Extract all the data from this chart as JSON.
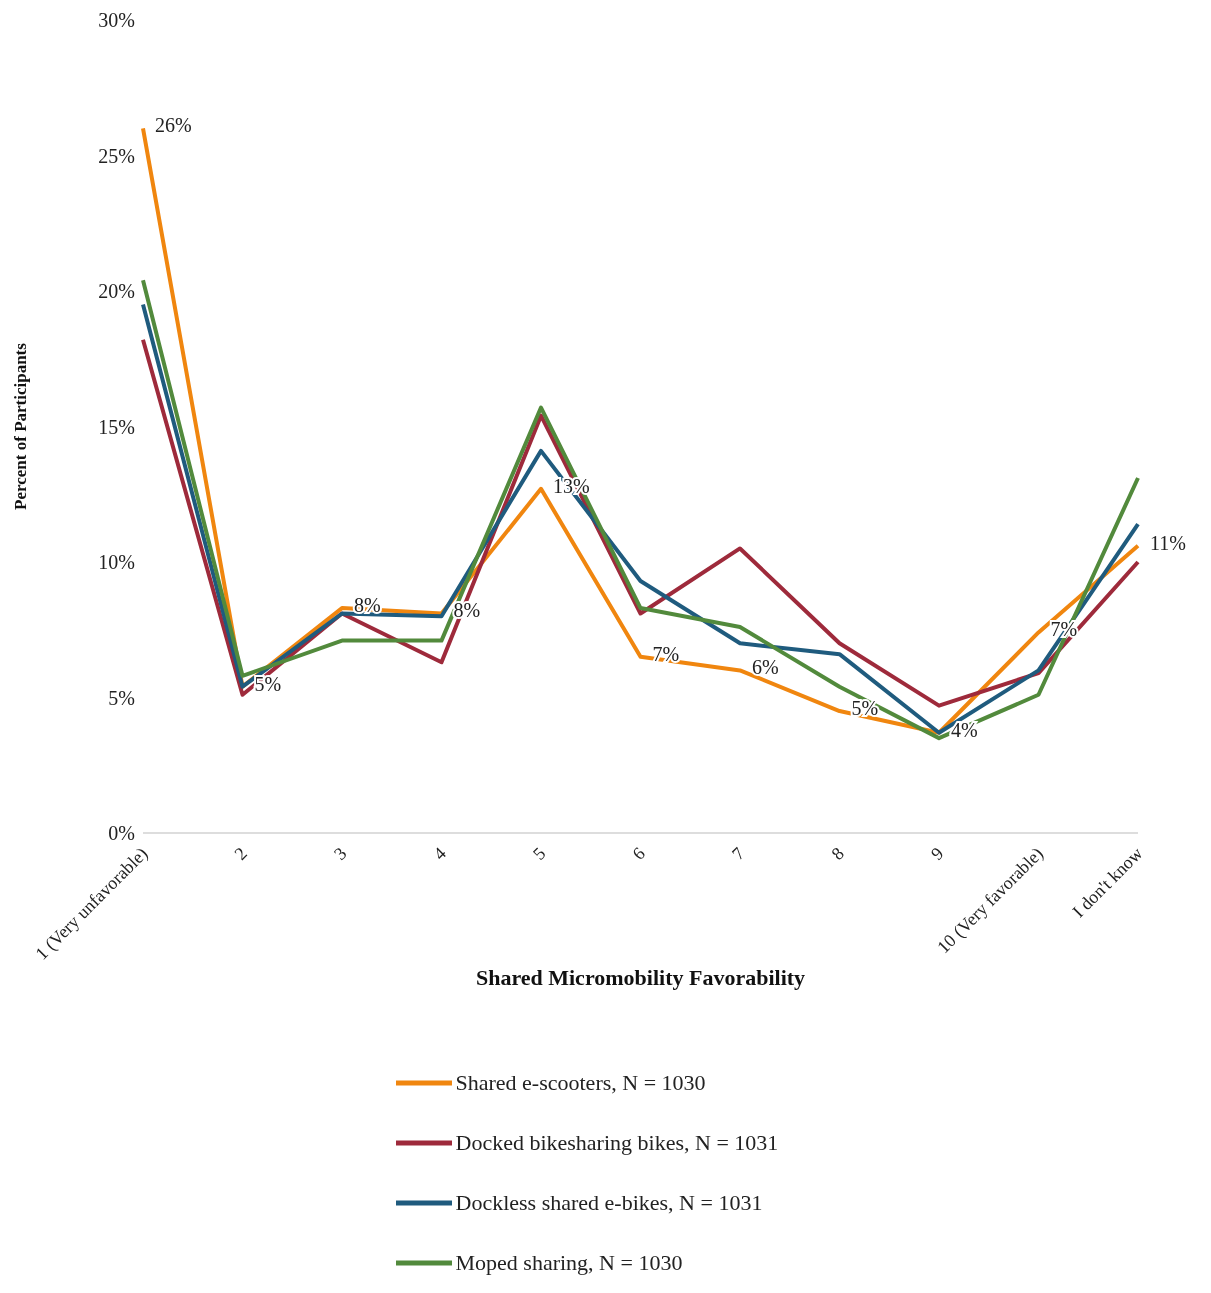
{
  "chart_data": {
    "type": "line",
    "xlabel": "Shared Micromobility Favorability",
    "ylabel": "Percent of Participants",
    "categories": [
      "1 (Very unfavorable)",
      "2",
      "3",
      "4",
      "5",
      "6",
      "7",
      "8",
      "9",
      "10 (Very favorable)",
      "I don't know"
    ],
    "series": [
      {
        "name": "Shared e-scooters, N =  1030",
        "color": "#f0860f",
        "values": [
          26,
          5.4,
          8.3,
          8.1,
          12.7,
          6.5,
          6.0,
          4.5,
          3.7,
          7.4,
          10.6
        ],
        "value_labels": [
          "26%",
          "5%",
          "8%",
          "8%",
          "13%",
          "7%",
          "6%",
          "5%",
          "4%",
          "7%",
          "11%"
        ]
      },
      {
        "name": "Docked bikesharing bikes, N =  1031",
        "color": "#9e2a3b",
        "values": [
          18.2,
          5.1,
          8.1,
          6.3,
          15.4,
          8.1,
          10.5,
          7.0,
          4.7,
          5.9,
          10.0
        ]
      },
      {
        "name": "Dockless shared e-bikes, N =  1031",
        "color": "#1f5b7e",
        "values": [
          19.5,
          5.4,
          8.1,
          8.0,
          14.1,
          9.3,
          7.0,
          6.6,
          3.7,
          6.0,
          11.4
        ]
      },
      {
        "name": "Moped sharing, N =  1030",
        "color": "#528a3c",
        "values": [
          20.4,
          5.8,
          7.1,
          7.1,
          15.7,
          8.3,
          7.6,
          5.4,
          3.5,
          5.1,
          13.1
        ]
      }
    ],
    "ylim": [
      0,
      30
    ],
    "yticks": [
      {
        "value": 0,
        "label": "0%"
      },
      {
        "value": 5,
        "label": "5%"
      },
      {
        "value": 10,
        "label": "10%"
      },
      {
        "value": 15,
        "label": "15%"
      },
      {
        "value": 20,
        "label": "20%"
      },
      {
        "value": 25,
        "label": "25%"
      },
      {
        "value": 30,
        "label": "30%"
      }
    ],
    "grid": false,
    "legend": "bottom",
    "marker": "none",
    "line_style": "solid"
  }
}
